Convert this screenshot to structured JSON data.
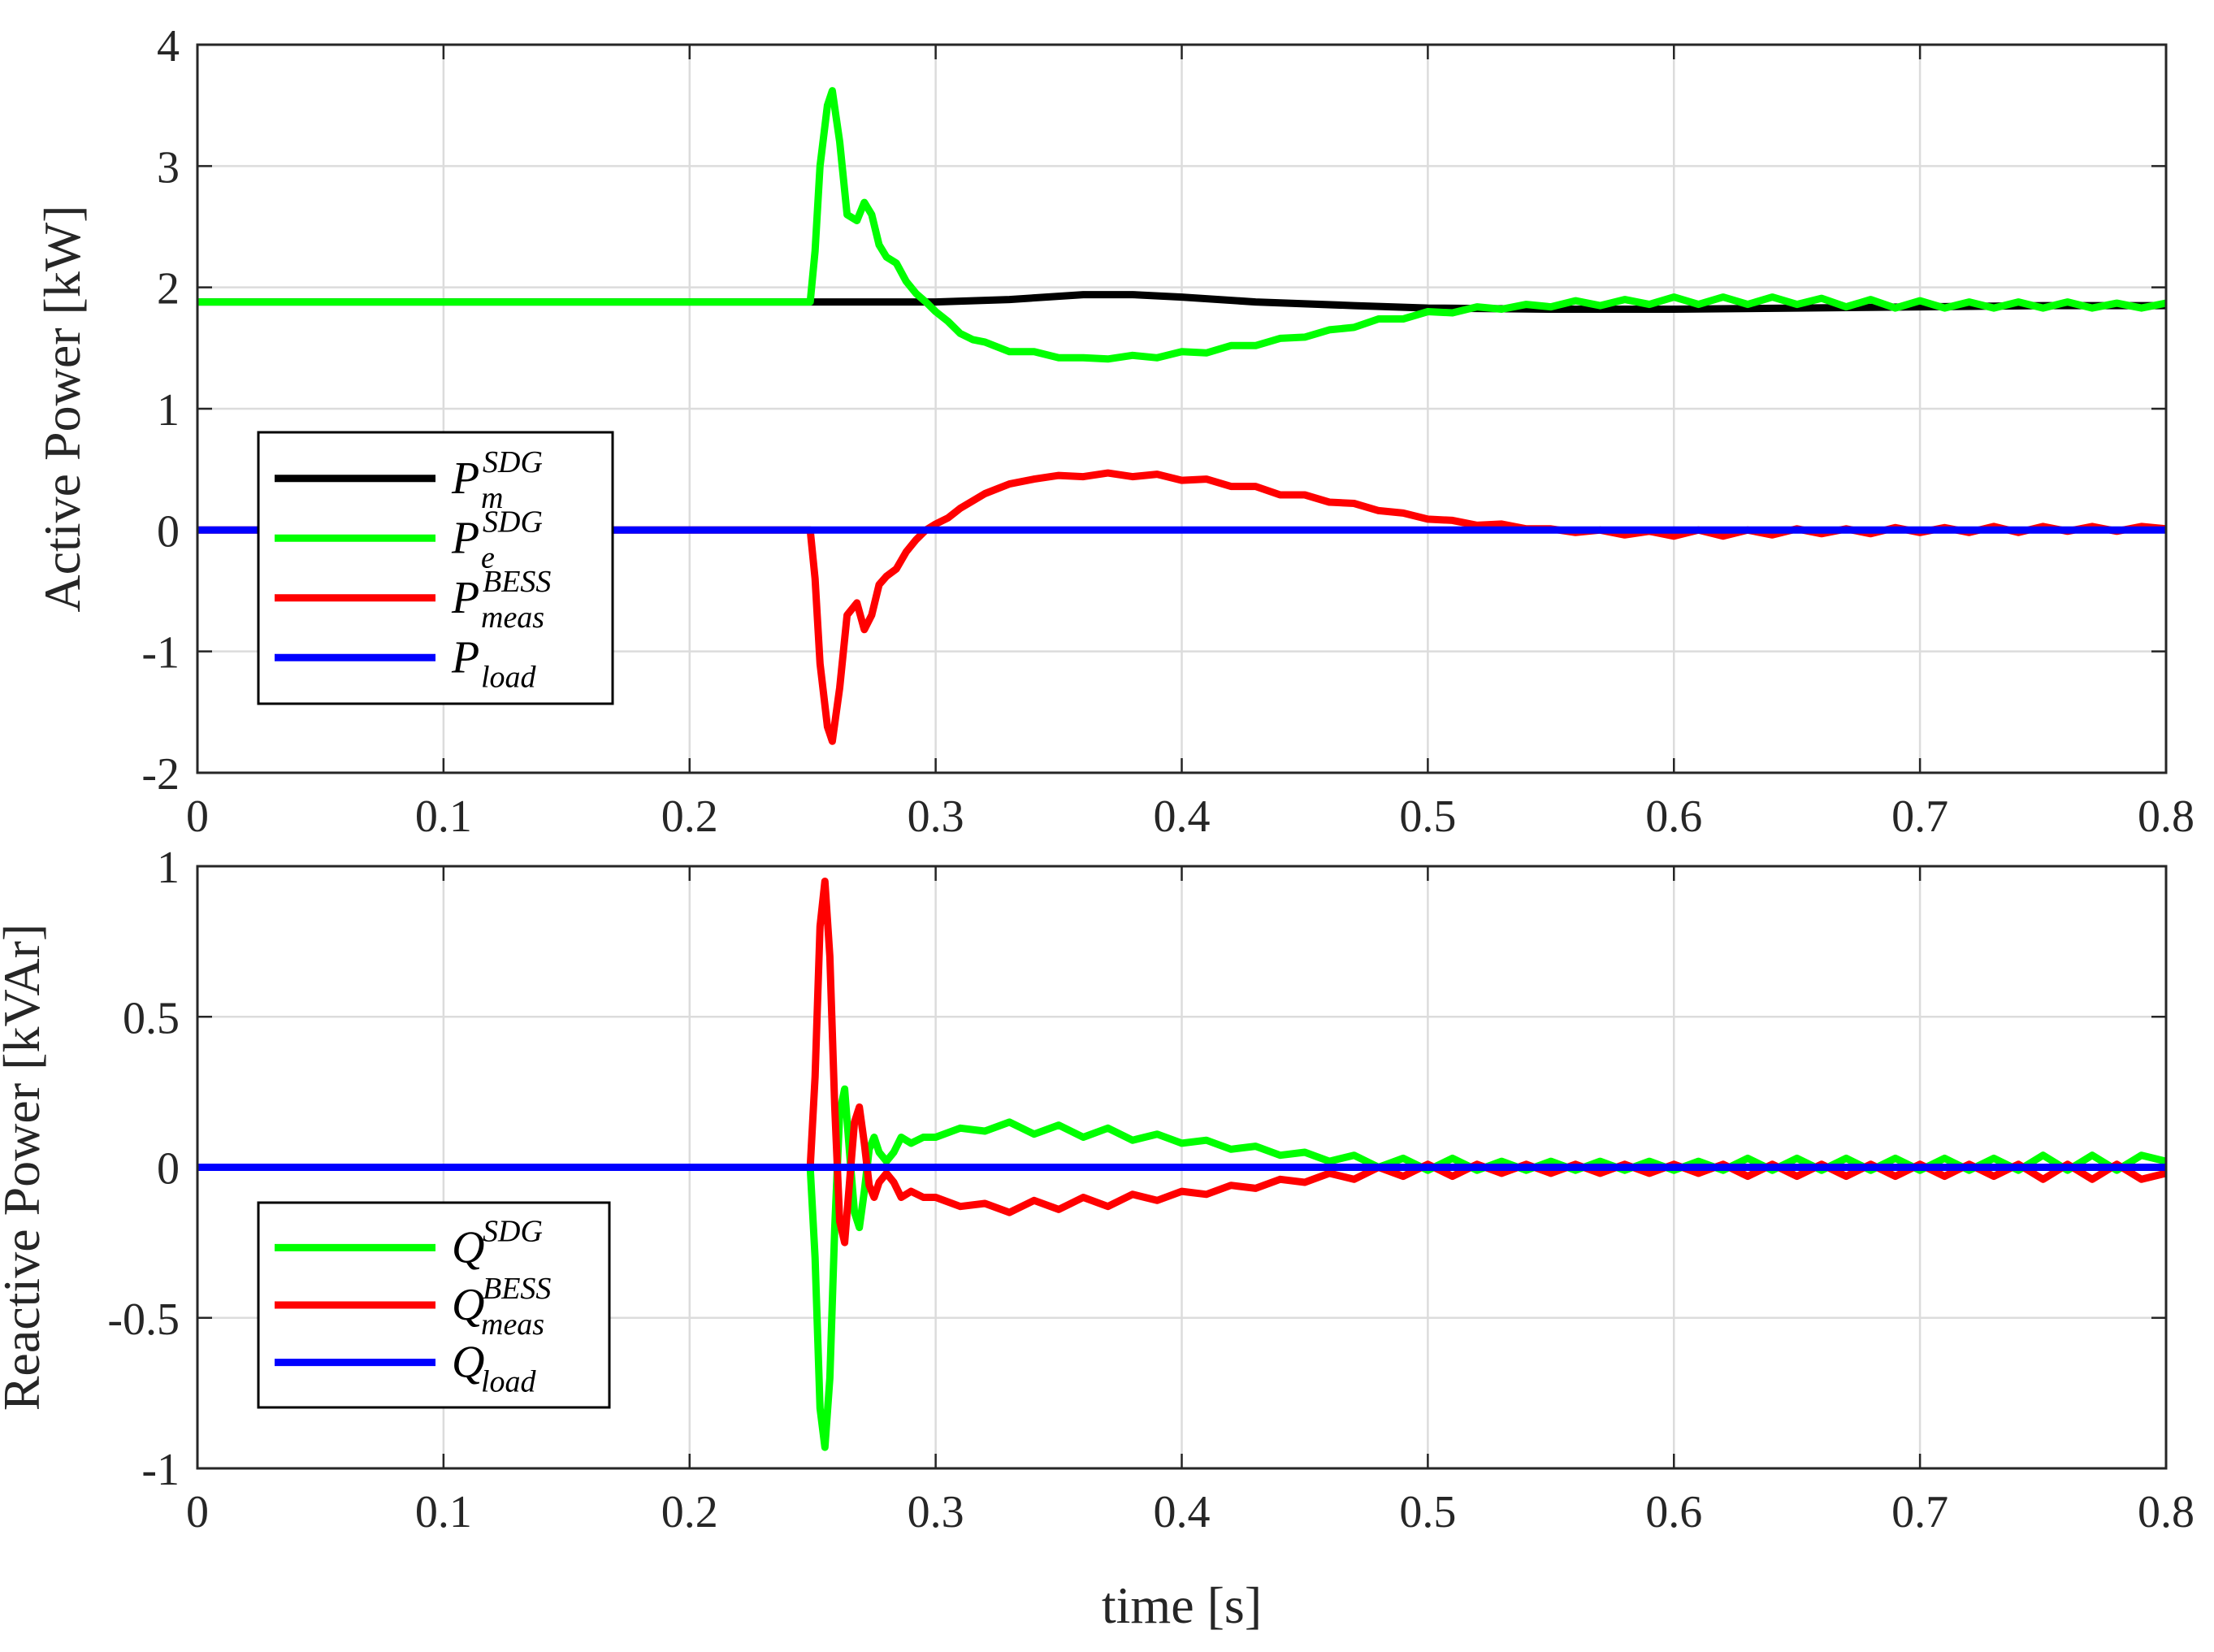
{
  "chart_data": [
    {
      "type": "line",
      "ylabel": "Active Power [kW]",
      "xlabel": "",
      "xlim": [
        0,
        0.8
      ],
      "ylim": [
        -2,
        4
      ],
      "xticks": [
        "0",
        "0.1",
        "0.2",
        "0.3",
        "0.4",
        "0.5",
        "0.6",
        "0.7",
        "0.8"
      ],
      "yticks": [
        "-2",
        "-1",
        "0",
        "1",
        "2",
        "3",
        "4"
      ],
      "grid": true,
      "legend_placement": "lower-left",
      "series": [
        {
          "name": "P_m^SDG",
          "base": "P",
          "sub": "m",
          "sup": "SDG",
          "color": "#000000",
          "x": [
            0,
            0.25,
            0.3,
            0.33,
            0.36,
            0.38,
            0.4,
            0.43,
            0.47,
            0.5,
            0.55,
            0.6,
            0.65,
            0.7,
            0.75,
            0.8
          ],
          "y": [
            1.88,
            1.88,
            1.88,
            1.9,
            1.94,
            1.94,
            1.92,
            1.88,
            1.85,
            1.83,
            1.82,
            1.82,
            1.83,
            1.84,
            1.85,
            1.85
          ]
        },
        {
          "name": "P_e^SDG",
          "base": "P",
          "sub": "e",
          "sup": "SDG",
          "color": "#00ff00",
          "x": [
            0,
            0.249,
            0.251,
            0.253,
            0.256,
            0.258,
            0.261,
            0.264,
            0.268,
            0.271,
            0.274,
            0.277,
            0.28,
            0.284,
            0.288,
            0.292,
            0.296,
            0.3,
            0.305,
            0.31,
            0.315,
            0.32,
            0.33,
            0.34,
            0.35,
            0.36,
            0.37,
            0.38,
            0.39,
            0.4,
            0.41,
            0.42,
            0.43,
            0.44,
            0.45,
            0.46,
            0.47,
            0.48,
            0.49,
            0.5,
            0.51,
            0.52,
            0.53,
            0.54,
            0.55,
            0.56,
            0.57,
            0.58,
            0.59,
            0.6,
            0.61,
            0.62,
            0.63,
            0.64,
            0.65,
            0.66,
            0.67,
            0.68,
            0.69,
            0.7,
            0.71,
            0.72,
            0.73,
            0.74,
            0.75,
            0.76,
            0.77,
            0.78,
            0.79,
            0.8
          ],
          "y": [
            1.88,
            1.88,
            2.3,
            3.0,
            3.5,
            3.62,
            3.2,
            2.6,
            2.55,
            2.7,
            2.6,
            2.35,
            2.25,
            2.2,
            2.05,
            1.95,
            1.88,
            1.8,
            1.72,
            1.62,
            1.57,
            1.55,
            1.47,
            1.47,
            1.42,
            1.42,
            1.41,
            1.44,
            1.42,
            1.47,
            1.46,
            1.52,
            1.52,
            1.58,
            1.59,
            1.65,
            1.67,
            1.74,
            1.74,
            1.8,
            1.79,
            1.84,
            1.82,
            1.86,
            1.84,
            1.89,
            1.85,
            1.9,
            1.86,
            1.92,
            1.86,
            1.92,
            1.86,
            1.92,
            1.86,
            1.91,
            1.84,
            1.9,
            1.83,
            1.89,
            1.83,
            1.88,
            1.83,
            1.88,
            1.83,
            1.88,
            1.83,
            1.87,
            1.83,
            1.87
          ]
        },
        {
          "name": "P_meas^BESS",
          "base": "P",
          "sub": "meas",
          "sup": "BESS",
          "color": "#ff0000",
          "x": [
            0,
            0.249,
            0.251,
            0.253,
            0.256,
            0.258,
            0.261,
            0.264,
            0.268,
            0.271,
            0.274,
            0.277,
            0.28,
            0.284,
            0.288,
            0.292,
            0.296,
            0.3,
            0.305,
            0.31,
            0.315,
            0.32,
            0.33,
            0.34,
            0.35,
            0.36,
            0.37,
            0.38,
            0.39,
            0.4,
            0.41,
            0.42,
            0.43,
            0.44,
            0.45,
            0.46,
            0.47,
            0.48,
            0.49,
            0.5,
            0.51,
            0.52,
            0.53,
            0.54,
            0.55,
            0.56,
            0.57,
            0.58,
            0.59,
            0.6,
            0.61,
            0.62,
            0.63,
            0.64,
            0.65,
            0.66,
            0.67,
            0.68,
            0.69,
            0.7,
            0.71,
            0.72,
            0.73,
            0.74,
            0.75,
            0.76,
            0.77,
            0.78,
            0.79,
            0.8
          ],
          "y": [
            0,
            0,
            -0.4,
            -1.1,
            -1.62,
            -1.74,
            -1.3,
            -0.7,
            -0.6,
            -0.82,
            -0.7,
            -0.45,
            -0.38,
            -0.32,
            -0.18,
            -0.08,
            0.0,
            0.05,
            0.1,
            0.18,
            0.24,
            0.3,
            0.38,
            0.42,
            0.45,
            0.44,
            0.47,
            0.44,
            0.46,
            0.41,
            0.42,
            0.36,
            0.36,
            0.29,
            0.29,
            0.23,
            0.22,
            0.16,
            0.14,
            0.09,
            0.08,
            0.04,
            0.05,
            0.01,
            0.01,
            -0.02,
            0.0,
            -0.04,
            -0.01,
            -0.05,
            0.0,
            -0.05,
            0.0,
            -0.04,
            0.01,
            -0.03,
            0.01,
            -0.03,
            0.02,
            -0.02,
            0.02,
            -0.02,
            0.03,
            -0.02,
            0.03,
            -0.01,
            0.03,
            -0.01,
            0.03,
            0.01
          ]
        },
        {
          "name": "P_load",
          "base": "P",
          "sub": "load",
          "sup": "",
          "color": "#0000ff",
          "x": [
            0,
            0.8
          ],
          "y": [
            0,
            0
          ]
        }
      ]
    },
    {
      "type": "line",
      "ylabel": "Reactive Power [kVAr]",
      "xlabel": "time [s]",
      "xlim": [
        0,
        0.8
      ],
      "ylim": [
        -1,
        1
      ],
      "xticks": [
        "0",
        "0.1",
        "0.2",
        "0.3",
        "0.4",
        "0.5",
        "0.6",
        "0.7",
        "0.8"
      ],
      "yticks": [
        "-1",
        "-0.5",
        "0",
        "0.5",
        "1"
      ],
      "grid": true,
      "legend_placement": "lower-left",
      "series": [
        {
          "name": "Q^SDG",
          "base": "Q",
          "sub": "",
          "sup": "SDG",
          "color": "#00ff00",
          "x": [
            0,
            0.249,
            0.251,
            0.253,
            0.255,
            0.257,
            0.259,
            0.261,
            0.263,
            0.265,
            0.267,
            0.269,
            0.271,
            0.273,
            0.275,
            0.277,
            0.28,
            0.283,
            0.286,
            0.29,
            0.295,
            0.3,
            0.31,
            0.32,
            0.33,
            0.34,
            0.35,
            0.36,
            0.37,
            0.38,
            0.39,
            0.4,
            0.41,
            0.42,
            0.43,
            0.44,
            0.45,
            0.46,
            0.47,
            0.48,
            0.49,
            0.5,
            0.51,
            0.52,
            0.53,
            0.54,
            0.55,
            0.56,
            0.57,
            0.58,
            0.59,
            0.6,
            0.61,
            0.62,
            0.63,
            0.64,
            0.65,
            0.66,
            0.67,
            0.68,
            0.69,
            0.7,
            0.71,
            0.72,
            0.73,
            0.74,
            0.75,
            0.76,
            0.77,
            0.78,
            0.79,
            0.8
          ],
          "y": [
            0,
            0,
            -0.3,
            -0.8,
            -0.93,
            -0.7,
            -0.2,
            0.18,
            0.26,
            0.05,
            -0.15,
            -0.2,
            -0.08,
            0.06,
            0.1,
            0.05,
            0.02,
            0.05,
            0.1,
            0.08,
            0.1,
            0.1,
            0.13,
            0.12,
            0.15,
            0.11,
            0.14,
            0.1,
            0.13,
            0.09,
            0.11,
            0.08,
            0.09,
            0.06,
            0.07,
            0.04,
            0.05,
            0.02,
            0.04,
            0.0,
            0.03,
            -0.01,
            0.03,
            -0.01,
            0.02,
            -0.01,
            0.02,
            -0.01,
            0.02,
            -0.01,
            0.02,
            -0.01,
            0.02,
            -0.01,
            0.03,
            -0.01,
            0.03,
            -0.01,
            0.03,
            -0.01,
            0.03,
            -0.01,
            0.03,
            -0.01,
            0.03,
            -0.01,
            0.04,
            -0.01,
            0.04,
            -0.01,
            0.04,
            0.02
          ]
        },
        {
          "name": "Q_meas^BESS",
          "base": "Q",
          "sub": "meas",
          "sup": "BESS",
          "color": "#ff0000",
          "x": [
            0,
            0.249,
            0.251,
            0.253,
            0.255,
            0.257,
            0.259,
            0.261,
            0.263,
            0.265,
            0.267,
            0.269,
            0.271,
            0.273,
            0.275,
            0.277,
            0.28,
            0.283,
            0.286,
            0.29,
            0.295,
            0.3,
            0.31,
            0.32,
            0.33,
            0.34,
            0.35,
            0.36,
            0.37,
            0.38,
            0.39,
            0.4,
            0.41,
            0.42,
            0.43,
            0.44,
            0.45,
            0.46,
            0.47,
            0.48,
            0.49,
            0.5,
            0.51,
            0.52,
            0.53,
            0.54,
            0.55,
            0.56,
            0.57,
            0.58,
            0.59,
            0.6,
            0.61,
            0.62,
            0.63,
            0.64,
            0.65,
            0.66,
            0.67,
            0.68,
            0.69,
            0.7,
            0.71,
            0.72,
            0.73,
            0.74,
            0.75,
            0.76,
            0.77,
            0.78,
            0.79,
            0.8
          ],
          "y": [
            0,
            0,
            0.3,
            0.8,
            0.95,
            0.7,
            0.2,
            -0.18,
            -0.25,
            -0.05,
            0.15,
            0.2,
            0.08,
            -0.06,
            -0.1,
            -0.05,
            -0.02,
            -0.05,
            -0.1,
            -0.08,
            -0.1,
            -0.1,
            -0.13,
            -0.12,
            -0.15,
            -0.11,
            -0.14,
            -0.1,
            -0.13,
            -0.09,
            -0.11,
            -0.08,
            -0.09,
            -0.06,
            -0.07,
            -0.04,
            -0.05,
            -0.02,
            -0.04,
            0.0,
            -0.03,
            0.01,
            -0.03,
            0.01,
            -0.02,
            0.01,
            -0.02,
            0.01,
            -0.02,
            0.01,
            -0.02,
            0.01,
            -0.02,
            0.01,
            -0.03,
            0.01,
            -0.03,
            0.01,
            -0.03,
            0.01,
            -0.03,
            0.01,
            -0.03,
            0.01,
            -0.03,
            0.01,
            -0.04,
            0.01,
            -0.04,
            0.01,
            -0.04,
            -0.02
          ]
        },
        {
          "name": "Q_load",
          "base": "Q",
          "sub": "load",
          "sup": "",
          "color": "#0000ff",
          "x": [
            0,
            0.8
          ],
          "y": [
            0,
            0
          ]
        }
      ]
    }
  ]
}
